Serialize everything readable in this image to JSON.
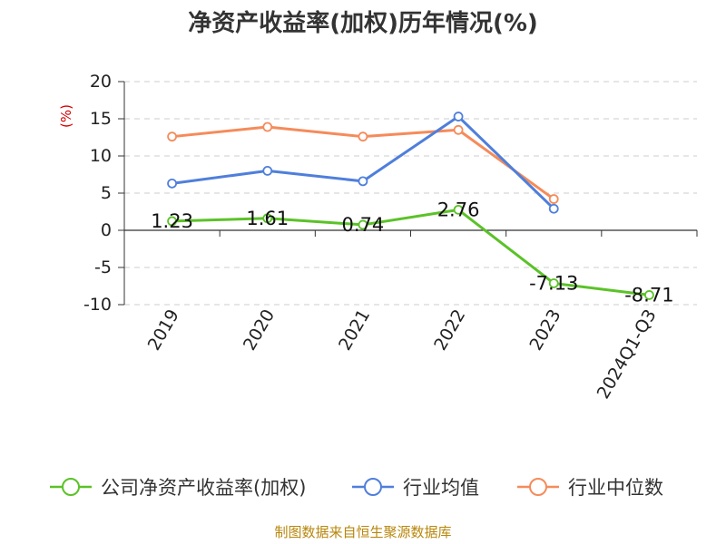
{
  "chart_data": {
    "type": "line",
    "title": "净资产收益率(加权)历年情况(%)",
    "ylabel": "(%)",
    "xlabel": "",
    "categories": [
      "2019",
      "2020",
      "2021",
      "2022",
      "2023",
      "2024Q1-Q3"
    ],
    "ylim": [
      -10,
      20
    ],
    "yticks": [
      20,
      15,
      10,
      5,
      0,
      -5,
      -10
    ],
    "grid": true,
    "legend_position": "bottom",
    "series": [
      {
        "name": "公司净资产收益率(加权)",
        "color": "#5bc228",
        "values": [
          1.23,
          1.61,
          0.74,
          2.76,
          -7.13,
          -8.71
        ],
        "labels": [
          "1.23",
          "1.61",
          "0.74",
          "2.76",
          "-7.13",
          "-8.71"
        ]
      },
      {
        "name": "行业均值",
        "color": "#4f7fdb",
        "values": [
          6.3,
          8.0,
          6.6,
          15.3,
          2.9,
          null
        ]
      },
      {
        "name": "行业中位数",
        "color": "#f58b5a",
        "values": [
          12.6,
          13.9,
          12.6,
          13.5,
          4.2,
          null
        ]
      }
    ]
  },
  "footer": {
    "source": "制图数据来自恒生聚源数据库"
  }
}
